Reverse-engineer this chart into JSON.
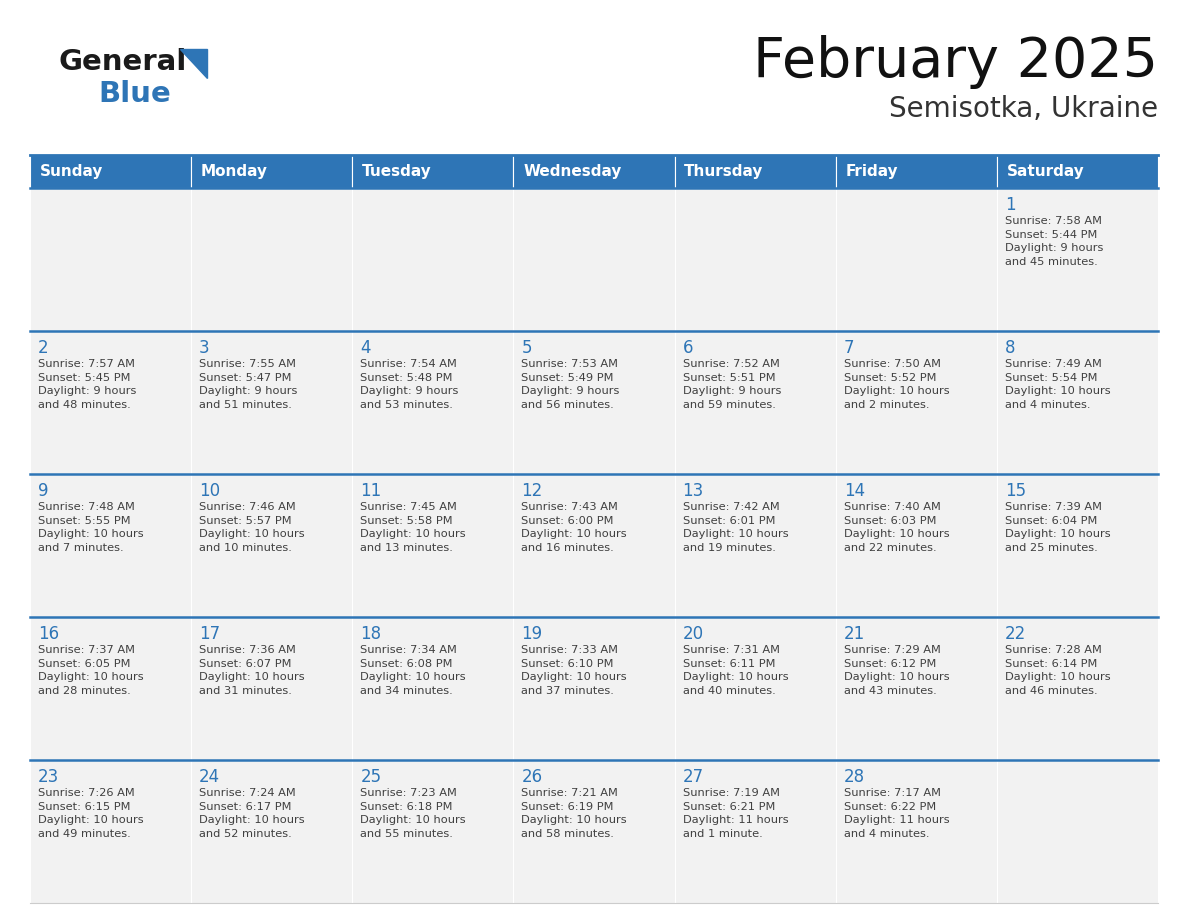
{
  "title": "February 2025",
  "subtitle": "Semisotka, Ukraine",
  "header_color": "#2E75B6",
  "header_text_color": "#FFFFFF",
  "cell_bg_color": "#F2F2F2",
  "day_number_color": "#2E75B6",
  "text_color": "#404040",
  "border_color": "#2E75B6",
  "days_of_week": [
    "Sunday",
    "Monday",
    "Tuesday",
    "Wednesday",
    "Thursday",
    "Friday",
    "Saturday"
  ],
  "weeks": [
    [
      {
        "day": null,
        "sunrise": null,
        "sunset": null,
        "daylight": null
      },
      {
        "day": null,
        "sunrise": null,
        "sunset": null,
        "daylight": null
      },
      {
        "day": null,
        "sunrise": null,
        "sunset": null,
        "daylight": null
      },
      {
        "day": null,
        "sunrise": null,
        "sunset": null,
        "daylight": null
      },
      {
        "day": null,
        "sunrise": null,
        "sunset": null,
        "daylight": null
      },
      {
        "day": null,
        "sunrise": null,
        "sunset": null,
        "daylight": null
      },
      {
        "day": 1,
        "sunrise": "7:58 AM",
        "sunset": "5:44 PM",
        "daylight": "9 hours\nand 45 minutes."
      }
    ],
    [
      {
        "day": 2,
        "sunrise": "7:57 AM",
        "sunset": "5:45 PM",
        "daylight": "9 hours\nand 48 minutes."
      },
      {
        "day": 3,
        "sunrise": "7:55 AM",
        "sunset": "5:47 PM",
        "daylight": "9 hours\nand 51 minutes."
      },
      {
        "day": 4,
        "sunrise": "7:54 AM",
        "sunset": "5:48 PM",
        "daylight": "9 hours\nand 53 minutes."
      },
      {
        "day": 5,
        "sunrise": "7:53 AM",
        "sunset": "5:49 PM",
        "daylight": "9 hours\nand 56 minutes."
      },
      {
        "day": 6,
        "sunrise": "7:52 AM",
        "sunset": "5:51 PM",
        "daylight": "9 hours\nand 59 minutes."
      },
      {
        "day": 7,
        "sunrise": "7:50 AM",
        "sunset": "5:52 PM",
        "daylight": "10 hours\nand 2 minutes."
      },
      {
        "day": 8,
        "sunrise": "7:49 AM",
        "sunset": "5:54 PM",
        "daylight": "10 hours\nand 4 minutes."
      }
    ],
    [
      {
        "day": 9,
        "sunrise": "7:48 AM",
        "sunset": "5:55 PM",
        "daylight": "10 hours\nand 7 minutes."
      },
      {
        "day": 10,
        "sunrise": "7:46 AM",
        "sunset": "5:57 PM",
        "daylight": "10 hours\nand 10 minutes."
      },
      {
        "day": 11,
        "sunrise": "7:45 AM",
        "sunset": "5:58 PM",
        "daylight": "10 hours\nand 13 minutes."
      },
      {
        "day": 12,
        "sunrise": "7:43 AM",
        "sunset": "6:00 PM",
        "daylight": "10 hours\nand 16 minutes."
      },
      {
        "day": 13,
        "sunrise": "7:42 AM",
        "sunset": "6:01 PM",
        "daylight": "10 hours\nand 19 minutes."
      },
      {
        "day": 14,
        "sunrise": "7:40 AM",
        "sunset": "6:03 PM",
        "daylight": "10 hours\nand 22 minutes."
      },
      {
        "day": 15,
        "sunrise": "7:39 AM",
        "sunset": "6:04 PM",
        "daylight": "10 hours\nand 25 minutes."
      }
    ],
    [
      {
        "day": 16,
        "sunrise": "7:37 AM",
        "sunset": "6:05 PM",
        "daylight": "10 hours\nand 28 minutes."
      },
      {
        "day": 17,
        "sunrise": "7:36 AM",
        "sunset": "6:07 PM",
        "daylight": "10 hours\nand 31 minutes."
      },
      {
        "day": 18,
        "sunrise": "7:34 AM",
        "sunset": "6:08 PM",
        "daylight": "10 hours\nand 34 minutes."
      },
      {
        "day": 19,
        "sunrise": "7:33 AM",
        "sunset": "6:10 PM",
        "daylight": "10 hours\nand 37 minutes."
      },
      {
        "day": 20,
        "sunrise": "7:31 AM",
        "sunset": "6:11 PM",
        "daylight": "10 hours\nand 40 minutes."
      },
      {
        "day": 21,
        "sunrise": "7:29 AM",
        "sunset": "6:12 PM",
        "daylight": "10 hours\nand 43 minutes."
      },
      {
        "day": 22,
        "sunrise": "7:28 AM",
        "sunset": "6:14 PM",
        "daylight": "10 hours\nand 46 minutes."
      }
    ],
    [
      {
        "day": 23,
        "sunrise": "7:26 AM",
        "sunset": "6:15 PM",
        "daylight": "10 hours\nand 49 minutes."
      },
      {
        "day": 24,
        "sunrise": "7:24 AM",
        "sunset": "6:17 PM",
        "daylight": "10 hours\nand 52 minutes."
      },
      {
        "day": 25,
        "sunrise": "7:23 AM",
        "sunset": "6:18 PM",
        "daylight": "10 hours\nand 55 minutes."
      },
      {
        "day": 26,
        "sunrise": "7:21 AM",
        "sunset": "6:19 PM",
        "daylight": "10 hours\nand 58 minutes."
      },
      {
        "day": 27,
        "sunrise": "7:19 AM",
        "sunset": "6:21 PM",
        "daylight": "11 hours\nand 1 minute."
      },
      {
        "day": 28,
        "sunrise": "7:17 AM",
        "sunset": "6:22 PM",
        "daylight": "11 hours\nand 4 minutes."
      },
      {
        "day": null,
        "sunrise": null,
        "sunset": null,
        "daylight": null
      }
    ]
  ],
  "logo_general_color": "#1a1a1a",
  "logo_blue_color": "#2E75B6",
  "logo_triangle_color": "#2E75B6"
}
